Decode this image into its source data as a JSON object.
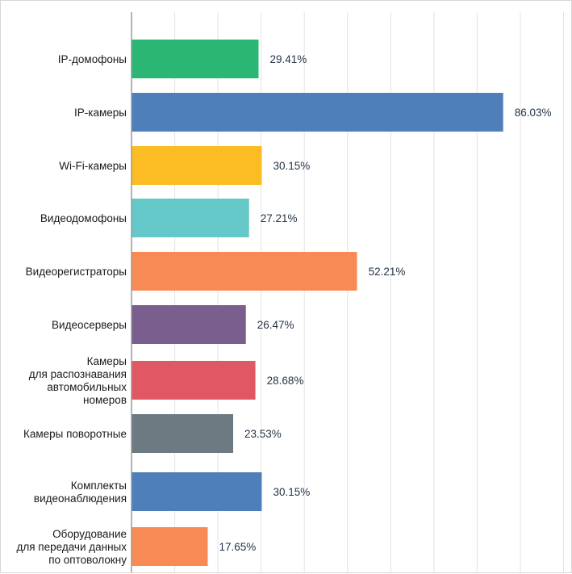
{
  "chart_data": {
    "type": "bar",
    "orientation": "horizontal",
    "grid": true,
    "xlim": [
      0,
      100
    ],
    "categories": [
      "IP-домофоны",
      "IP-камеры",
      "Wi-Fi-камеры",
      "Видеодомофоны",
      "Видеорегистраторы",
      "Видеосерверы",
      "Камеры\nдля распознавания\nавтомобильных\nномеров",
      "Камеры поворотные",
      "Комплекты\nвидеонаблюдения",
      "Оборудование\nдля передачи данных\nпо оптоволокну"
    ],
    "values": [
      29.41,
      86.03,
      30.15,
      27.21,
      52.21,
      26.47,
      28.68,
      23.53,
      30.15,
      17.65
    ],
    "value_labels": [
      "29.41%",
      "86.03%",
      "30.15%",
      "27.21%",
      "52.21%",
      "26.47%",
      "28.68%",
      "23.53%",
      "30.15%",
      "17.65%"
    ],
    "colors": [
      "#2bb673",
      "#4f7fba",
      "#fbbd23",
      "#65c8c8",
      "#f88b55",
      "#7a5f8e",
      "#e05863",
      "#6d7a82",
      "#4f7fba",
      "#f88b55"
    ]
  }
}
